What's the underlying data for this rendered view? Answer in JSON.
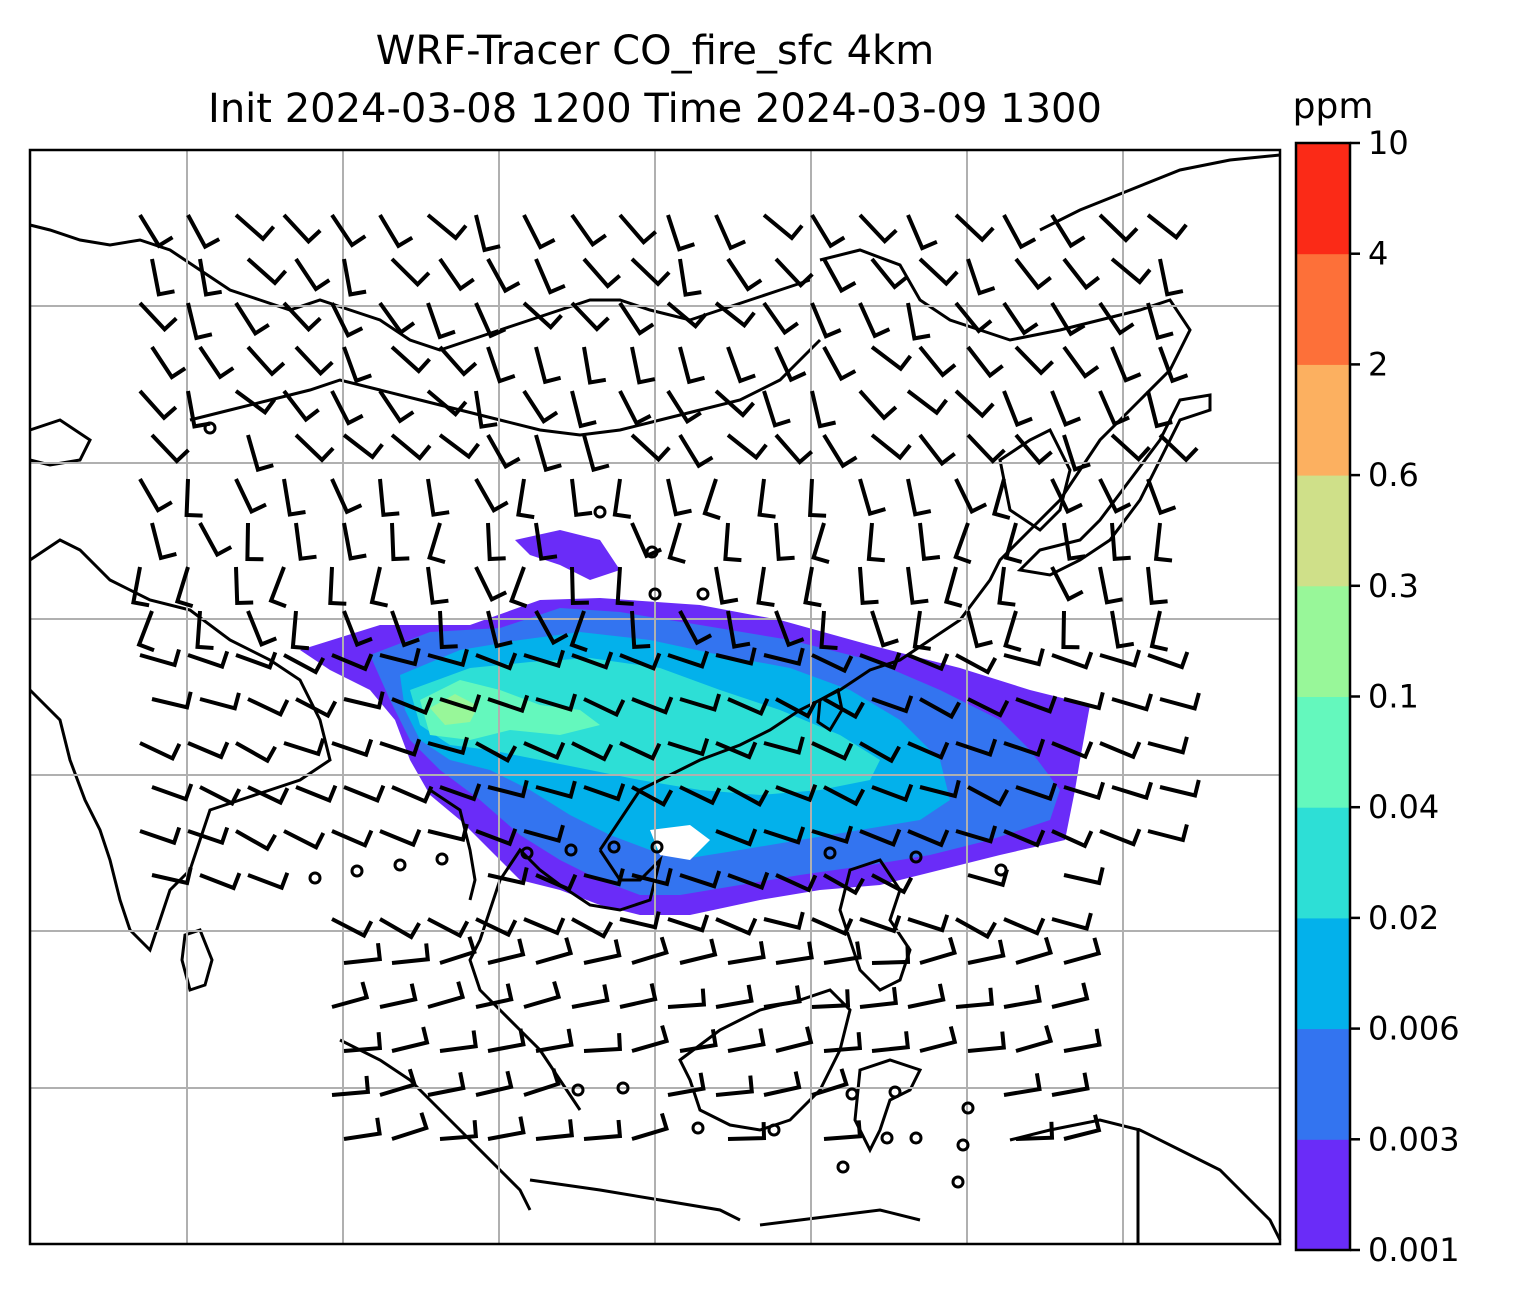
{
  "title": {
    "line1": "WRF-Tracer CO_fire_sfc 4km",
    "line2": "Init 2024-03-08 1200 Time 2024-03-09 1300"
  },
  "map": {
    "projection": "lat-lon",
    "gridlines": true,
    "field": "CO_fire_sfc",
    "wind_barbs": true,
    "coastlines": true
  },
  "colorbar": {
    "units": "ppm",
    "levels": [
      "0.001",
      "0.003",
      "0.006",
      "0.02",
      "0.04",
      "0.1",
      "0.3",
      "0.6",
      "2",
      "4",
      "10"
    ],
    "colors": [
      "#6a2cf8",
      "#3374f0",
      "#03b1eb",
      "#2ddfd6",
      "#64f8bd",
      "#98f799",
      "#cfe089",
      "#fcb060",
      "#fd7039",
      "#fb2a17"
    ]
  }
}
